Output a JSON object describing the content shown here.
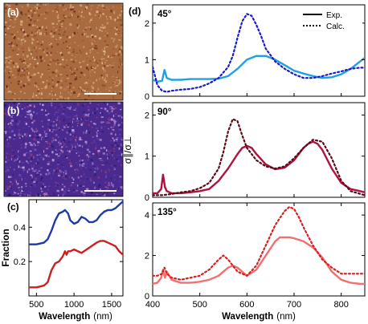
{
  "panels": {
    "a": {
      "label": "(a)",
      "texture": {
        "base": "#a86a3e",
        "colors": [
          "#c89a6e",
          "#8a4a2a",
          "#e0c49a",
          "#6e2a1e",
          "#d4a070",
          "#b07a52"
        ]
      }
    },
    "b": {
      "label": "(b)",
      "texture": {
        "base": "#4a2a8e",
        "colors": [
          "#7a5ac0",
          "#2a1a6a",
          "#b8a6e0",
          "#8a3a7a",
          "#5e3aa6",
          "#c090d0"
        ]
      }
    }
  },
  "chart_data": [
    {
      "type": "line",
      "panel": "(c)",
      "xlabel": "Wavelength",
      "xunit": "(nm)",
      "ylabel": "Fraction",
      "xlim": [
        400,
        1650
      ],
      "ylim": [
        0,
        0.56
      ],
      "xticks": [
        "500",
        "1000",
        "1500"
      ],
      "xtick_values": [
        500,
        1000,
        1500
      ],
      "yticks": [
        "0.2",
        "0.4"
      ],
      "ytick_values": [
        0.2,
        0.4
      ],
      "series": [
        {
          "color": "#1f3aa8",
          "x": [
            400,
            500,
            600,
            650,
            700,
            750,
            800,
            850,
            880,
            900,
            920,
            950,
            1000,
            1050,
            1100,
            1150,
            1200,
            1250,
            1300,
            1350,
            1400,
            1450,
            1500,
            1550,
            1600,
            1650
          ],
          "y": [
            0.3,
            0.3,
            0.31,
            0.33,
            0.38,
            0.44,
            0.48,
            0.49,
            0.5,
            0.49,
            0.48,
            0.44,
            0.42,
            0.43,
            0.46,
            0.45,
            0.43,
            0.43,
            0.44,
            0.47,
            0.49,
            0.5,
            0.5,
            0.51,
            0.53,
            0.55
          ]
        },
        {
          "color": "#cc1f1f",
          "x": [
            400,
            500,
            600,
            650,
            700,
            750,
            800,
            850,
            880,
            900,
            920,
            950,
            1000,
            1100,
            1200,
            1300,
            1350,
            1400,
            1450,
            1500,
            1550,
            1600,
            1650
          ],
          "y": [
            0.05,
            0.05,
            0.06,
            0.08,
            0.15,
            0.19,
            0.2,
            0.23,
            0.26,
            0.24,
            0.26,
            0.26,
            0.27,
            0.25,
            0.28,
            0.31,
            0.32,
            0.32,
            0.31,
            0.3,
            0.29,
            0.26,
            0.24
          ]
        }
      ]
    },
    {
      "type": "line",
      "panel": "(d)",
      "annotation": "45°",
      "legend": {
        "placement": "top-right",
        "entries": [
          "Exp.",
          "Calc."
        ]
      },
      "xlim": [
        400,
        850
      ],
      "ylim": [
        0,
        2.5
      ],
      "yticks": [
        "0",
        "1",
        "2"
      ],
      "ytick_values": [
        0,
        1,
        2
      ],
      "series": [
        {
          "name": "Exp.",
          "style": "solid",
          "color": "#1ea0e6",
          "x": [
            400,
            410,
            420,
            425,
            430,
            440,
            460,
            480,
            500,
            520,
            540,
            560,
            580,
            600,
            620,
            640,
            660,
            680,
            700,
            720,
            740,
            760,
            780,
            800,
            820,
            840,
            850
          ],
          "y": [
            0.45,
            0.4,
            0.42,
            0.72,
            0.5,
            0.45,
            0.45,
            0.47,
            0.47,
            0.47,
            0.48,
            0.55,
            0.75,
            1.0,
            1.1,
            1.1,
            1.0,
            0.85,
            0.7,
            0.62,
            0.55,
            0.5,
            0.52,
            0.6,
            0.75,
            0.95,
            1.05
          ]
        },
        {
          "name": "Calc.",
          "style": "dotted",
          "color": "#1a1acc",
          "x": [
            400,
            410,
            420,
            430,
            440,
            460,
            480,
            500,
            520,
            540,
            560,
            570,
            580,
            590,
            600,
            610,
            620,
            630,
            640,
            660,
            680,
            700,
            720,
            740,
            760,
            780,
            800,
            820,
            840,
            850
          ],
          "y": [
            0.8,
            0.3,
            0.15,
            0.12,
            0.15,
            0.18,
            0.2,
            0.25,
            0.35,
            0.5,
            0.8,
            1.1,
            1.6,
            2.05,
            2.25,
            2.2,
            1.95,
            1.65,
            1.3,
            0.95,
            0.75,
            0.6,
            0.5,
            0.5,
            0.55,
            0.62,
            0.68,
            0.75,
            0.78,
            0.78
          ]
        }
      ]
    },
    {
      "type": "line",
      "panel": "(d)",
      "annotation": "90°",
      "ylabel": "σ∥/σ⊥",
      "xlim": [
        400,
        850
      ],
      "ylim": [
        0,
        2.3
      ],
      "yticks": [
        "0",
        "1",
        "2"
      ],
      "ytick_values": [
        0,
        1,
        2
      ],
      "series": [
        {
          "name": "Exp.",
          "style": "solid",
          "color": "#b0123e",
          "x": [
            400,
            410,
            418,
            422,
            426,
            430,
            440,
            460,
            480,
            500,
            520,
            540,
            560,
            580,
            590,
            600,
            610,
            620,
            640,
            660,
            680,
            700,
            720,
            730,
            740,
            750,
            760,
            780,
            800,
            820,
            840,
            850
          ],
          "y": [
            0.1,
            0.1,
            0.2,
            0.55,
            0.25,
            0.15,
            0.1,
            0.1,
            0.12,
            0.15,
            0.2,
            0.4,
            0.7,
            1.05,
            1.2,
            1.25,
            1.2,
            1.05,
            0.8,
            0.68,
            0.72,
            0.9,
            1.2,
            1.3,
            1.35,
            1.3,
            1.15,
            0.7,
            0.35,
            0.2,
            0.15,
            0.12
          ]
        },
        {
          "name": "Calc.",
          "style": "dotted",
          "color": "#5a0a14",
          "x": [
            400,
            420,
            440,
            460,
            480,
            500,
            520,
            540,
            550,
            560,
            570,
            580,
            590,
            600,
            620,
            640,
            660,
            680,
            700,
            720,
            740,
            760,
            780,
            800,
            820,
            850
          ],
          "y": [
            0.05,
            0.05,
            0.08,
            0.12,
            0.15,
            0.22,
            0.35,
            0.7,
            1.1,
            1.6,
            1.9,
            1.85,
            1.5,
            1.2,
            0.9,
            0.75,
            0.7,
            0.75,
            0.95,
            1.2,
            1.4,
            1.35,
            0.95,
            0.4,
            0.15,
            0.05
          ]
        }
      ]
    },
    {
      "type": "line",
      "panel": "(d)",
      "annotation": "135°",
      "xlabel": "Wavelength",
      "xunit": "(nm)",
      "xlim": [
        400,
        850
      ],
      "ylim": [
        0,
        4.6
      ],
      "xticks": [
        "400",
        "500",
        "600",
        "700",
        "800"
      ],
      "xtick_values": [
        400,
        500,
        600,
        700,
        800
      ],
      "yticks": [
        "0",
        "2",
        "4"
      ],
      "ytick_values": [
        0,
        2,
        4
      ],
      "series": [
        {
          "name": "Exp.",
          "style": "solid",
          "color": "#f07070",
          "x": [
            400,
            410,
            418,
            422,
            426,
            430,
            440,
            460,
            480,
            500,
            520,
            540,
            560,
            570,
            580,
            600,
            620,
            640,
            660,
            670,
            680,
            690,
            700,
            720,
            740,
            760,
            780,
            800,
            820,
            840,
            850
          ],
          "y": [
            0.6,
            0.65,
            0.9,
            1.3,
            0.9,
            1.2,
            0.8,
            0.65,
            0.65,
            0.7,
            0.8,
            1.0,
            1.4,
            1.5,
            1.4,
            1.0,
            1.3,
            2.0,
            2.7,
            2.9,
            2.9,
            2.9,
            2.85,
            2.7,
            2.4,
            1.9,
            1.2,
            0.8,
            0.65,
            0.6,
            0.6
          ]
        },
        {
          "name": "Calc.",
          "style": "dotted",
          "color": "#d81e1e",
          "x": [
            400,
            410,
            420,
            425,
            430,
            440,
            460,
            480,
            500,
            520,
            540,
            550,
            560,
            570,
            580,
            600,
            620,
            640,
            660,
            680,
            690,
            700,
            710,
            720,
            740,
            760,
            780,
            800,
            820,
            840,
            850
          ],
          "y": [
            1.0,
            1.0,
            1.1,
            1.4,
            1.1,
            0.9,
            0.8,
            0.9,
            1.0,
            1.3,
            1.8,
            2.0,
            1.8,
            1.5,
            1.2,
            1.0,
            1.5,
            2.5,
            3.5,
            4.2,
            4.4,
            4.3,
            3.9,
            3.4,
            2.5,
            1.8,
            1.4,
            1.1,
            1.1,
            1.1,
            1.1
          ]
        }
      ]
    }
  ]
}
